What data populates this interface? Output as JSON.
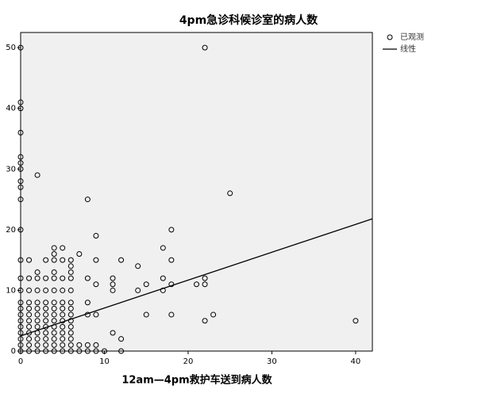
{
  "chart_data": {
    "type": "scatter",
    "title": "4pm急诊科候诊室的病人数",
    "x_label": "12am—4pm救护车送到病人数",
    "xlim": [
      0,
      42
    ],
    "ylim": [
      0,
      52.5
    ],
    "xticks": [
      0,
      10,
      20,
      30,
      40
    ],
    "yticks": [
      0,
      10,
      20,
      30,
      40,
      50
    ],
    "grid": false,
    "legend": "right",
    "background": "#f0f0f0",
    "series": [
      {
        "name": "已观测",
        "type": "scatter",
        "color": "#000000",
        "x": [
          0,
          0,
          0,
          0,
          0,
          0,
          0,
          0,
          0,
          0,
          0,
          0,
          0,
          0,
          0,
          0,
          0,
          0,
          0,
          0,
          0,
          0,
          0,
          1,
          1,
          1,
          1,
          1,
          1,
          1,
          1,
          1,
          1,
          1,
          1,
          2,
          2,
          2,
          2,
          2,
          2,
          2,
          2,
          2,
          2,
          2,
          2,
          2,
          3,
          3,
          3,
          3,
          3,
          3,
          3,
          3,
          3,
          3,
          3,
          3,
          4,
          4,
          4,
          4,
          4,
          4,
          4,
          4,
          4,
          4,
          4,
          4,
          4,
          4,
          4,
          5,
          5,
          5,
          5,
          5,
          5,
          5,
          5,
          5,
          5,
          5,
          5,
          5,
          6,
          6,
          6,
          6,
          6,
          6,
          6,
          6,
          6,
          6,
          6,
          6,
          6,
          6,
          7,
          7,
          7,
          8,
          8,
          8,
          8,
          8,
          8,
          9,
          9,
          9,
          9,
          9,
          9,
          10,
          11,
          11,
          11,
          11,
          12,
          12,
          12,
          14,
          14,
          15,
          15,
          17,
          17,
          17,
          18,
          18,
          18,
          18,
          21,
          22,
          22,
          22,
          22,
          23,
          25,
          40
        ],
        "values": [
          0,
          1,
          2,
          3,
          4,
          5,
          6,
          7,
          8,
          10,
          12,
          15,
          20,
          25,
          27,
          28,
          30,
          31,
          32,
          36,
          40,
          41,
          50,
          0,
          1,
          2,
          3,
          4,
          5,
          6,
          7,
          8,
          10,
          12,
          15,
          0,
          1,
          2,
          3,
          4,
          5,
          6,
          7,
          8,
          10,
          12,
          13,
          29,
          0,
          1,
          2,
          3,
          4,
          5,
          6,
          7,
          8,
          10,
          12,
          15,
          0,
          1,
          2,
          3,
          4,
          5,
          6,
          7,
          8,
          10,
          12,
          13,
          15,
          16,
          17,
          0,
          1,
          2,
          3,
          4,
          5,
          6,
          7,
          8,
          10,
          12,
          15,
          17,
          0,
          1,
          2,
          3,
          4,
          5,
          6,
          7,
          8,
          10,
          12,
          13,
          14,
          15,
          0,
          1,
          16,
          0,
          1,
          6,
          8,
          12,
          25,
          0,
          1,
          6,
          11,
          15,
          19,
          0,
          3,
          10,
          11,
          12,
          0,
          2,
          15,
          10,
          14,
          6,
          11,
          10,
          12,
          17,
          6,
          11,
          15,
          20,
          11,
          5,
          11,
          12,
          50,
          6,
          26,
          5
        ]
      },
      {
        "name": "线性",
        "type": "line",
        "color": "#000000",
        "x": [
          0,
          42
        ],
        "values": [
          2.5,
          21.8
        ]
      }
    ]
  }
}
